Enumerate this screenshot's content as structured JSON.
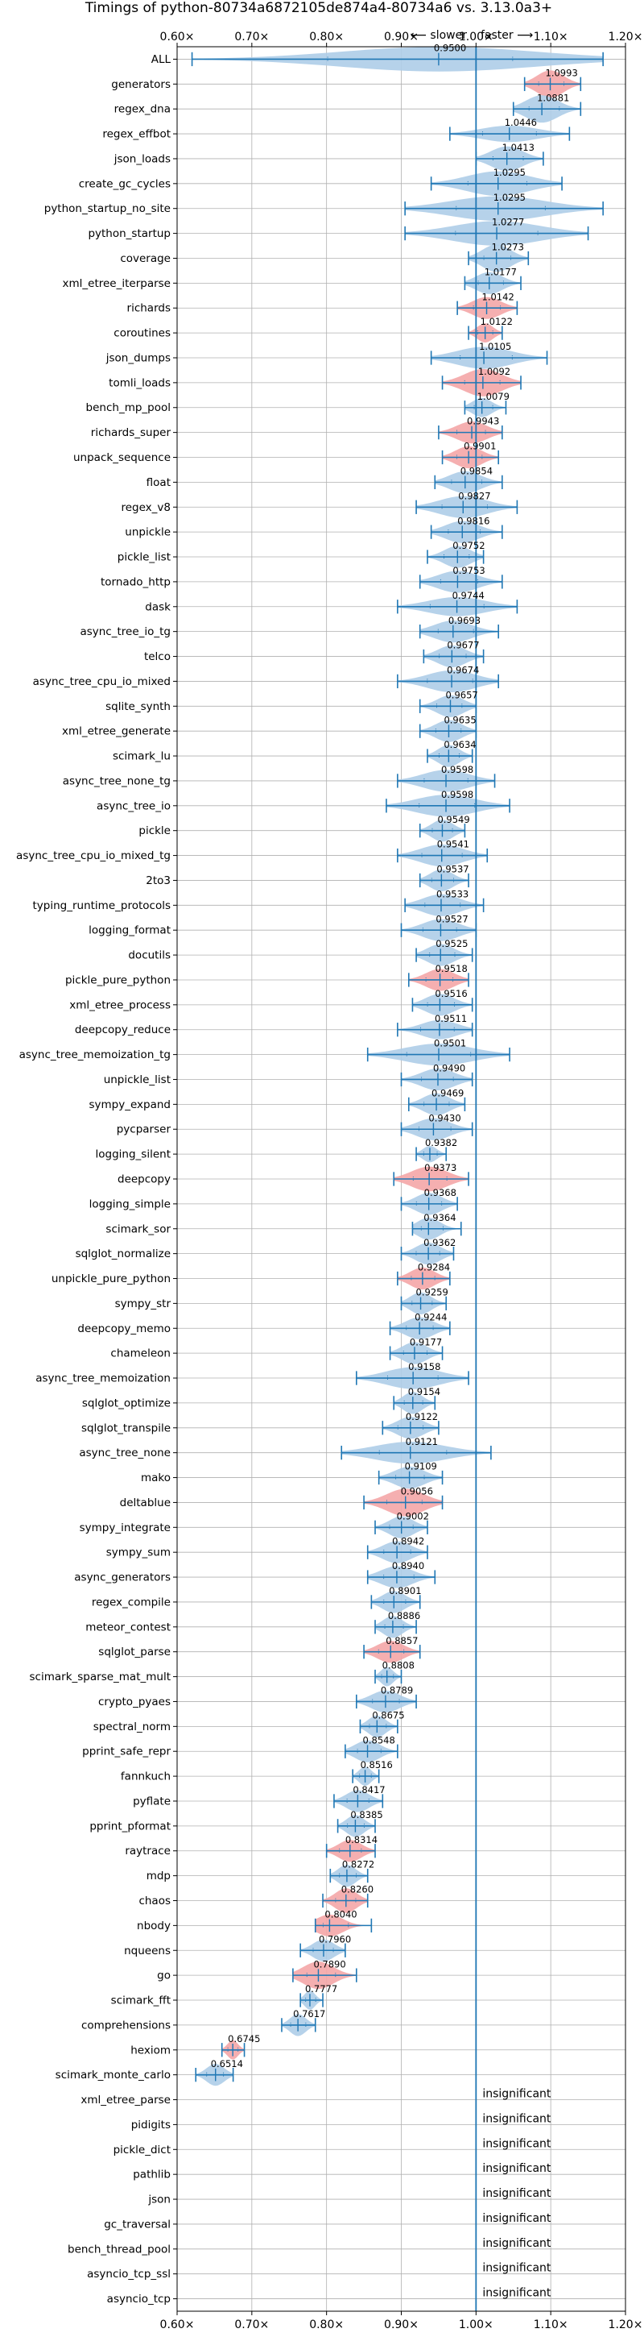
{
  "chart_data": {
    "type": "violin",
    "title": "Timings of python-80734a6872105de874a4-80734a6 vs. 3.13.0a3+",
    "subtitle_slower": "⟵ slower",
    "subtitle_faster": "faster ⟶",
    "xlim": [
      0.6,
      1.2
    ],
    "xticks": [
      "0.60×",
      "0.70×",
      "0.80×",
      "0.90×",
      "1.00×",
      "1.10×",
      "1.20×"
    ],
    "reference_line": 1.0,
    "grid": true,
    "colors": {
      "normal": "#1f77b4",
      "violin_normal": "#aecde8",
      "violin_highlight": "#f4a6a7"
    },
    "insignificant_label": "insignificant",
    "benchmarks": [
      {
        "name": "ALL",
        "value": 0.95,
        "min": 0.62,
        "max": 1.17,
        "width": 0.9,
        "highlight": false
      },
      {
        "name": "generators",
        "value": 1.0993,
        "min": 1.065,
        "max": 1.14,
        "width": 1.0,
        "highlight": true
      },
      {
        "name": "regex_dna",
        "value": 1.0881,
        "min": 1.05,
        "max": 1.14,
        "width": 1.0,
        "highlight": false
      },
      {
        "name": "regex_effbot",
        "value": 1.0446,
        "min": 0.965,
        "max": 1.125,
        "width": 0.6,
        "highlight": false
      },
      {
        "name": "json_loads",
        "value": 1.0413,
        "min": 1.0,
        "max": 1.09,
        "width": 0.9,
        "highlight": false
      },
      {
        "name": "create_gc_cycles",
        "value": 1.0295,
        "min": 0.94,
        "max": 1.115,
        "width": 0.9,
        "highlight": false
      },
      {
        "name": "python_startup_no_site",
        "value": 1.0295,
        "min": 0.905,
        "max": 1.17,
        "width": 0.9,
        "highlight": false
      },
      {
        "name": "python_startup",
        "value": 1.0277,
        "min": 0.905,
        "max": 1.15,
        "width": 0.9,
        "highlight": false
      },
      {
        "name": "coverage",
        "value": 1.0273,
        "min": 0.99,
        "max": 1.07,
        "width": 1.0,
        "highlight": false
      },
      {
        "name": "xml_etree_iterparse",
        "value": 1.0177,
        "min": 0.985,
        "max": 1.06,
        "width": 0.8,
        "highlight": false
      },
      {
        "name": "richards",
        "value": 1.0142,
        "min": 0.975,
        "max": 1.055,
        "width": 0.8,
        "highlight": true
      },
      {
        "name": "coroutines",
        "value": 1.0122,
        "min": 0.99,
        "max": 1.035,
        "width": 0.7,
        "highlight": true
      },
      {
        "name": "json_dumps",
        "value": 1.0105,
        "min": 0.94,
        "max": 1.095,
        "width": 0.8,
        "highlight": false
      },
      {
        "name": "tomli_loads",
        "value": 1.0092,
        "min": 0.955,
        "max": 1.06,
        "width": 1.0,
        "highlight": true
      },
      {
        "name": "bench_mp_pool",
        "value": 1.0079,
        "min": 0.985,
        "max": 1.04,
        "width": 0.7,
        "highlight": false
      },
      {
        "name": "richards_super",
        "value": 0.9943,
        "min": 0.95,
        "max": 1.035,
        "width": 0.8,
        "highlight": true
      },
      {
        "name": "unpack_sequence",
        "value": 0.9901,
        "min": 0.955,
        "max": 1.03,
        "width": 0.8,
        "highlight": true
      },
      {
        "name": "float",
        "value": 0.9854,
        "min": 0.945,
        "max": 1.035,
        "width": 0.8,
        "highlight": false
      },
      {
        "name": "regex_v8",
        "value": 0.9827,
        "min": 0.92,
        "max": 1.055,
        "width": 0.8,
        "highlight": false
      },
      {
        "name": "unpickle",
        "value": 0.9816,
        "min": 0.94,
        "max": 1.035,
        "width": 0.8,
        "highlight": false
      },
      {
        "name": "pickle_list",
        "value": 0.9752,
        "min": 0.935,
        "max": 1.01,
        "width": 0.8,
        "highlight": false
      },
      {
        "name": "tornado_http",
        "value": 0.9753,
        "min": 0.925,
        "max": 1.035,
        "width": 0.8,
        "highlight": false
      },
      {
        "name": "dask",
        "value": 0.9744,
        "min": 0.895,
        "max": 1.055,
        "width": 0.7,
        "highlight": false
      },
      {
        "name": "async_tree_io_tg",
        "value": 0.9693,
        "min": 0.925,
        "max": 1.03,
        "width": 0.8,
        "highlight": false
      },
      {
        "name": "telco",
        "value": 0.9677,
        "min": 0.93,
        "max": 1.01,
        "width": 0.8,
        "highlight": false
      },
      {
        "name": "async_tree_cpu_io_mixed",
        "value": 0.9674,
        "min": 0.895,
        "max": 1.03,
        "width": 0.8,
        "highlight": false
      },
      {
        "name": "sqlite_synth",
        "value": 0.9657,
        "min": 0.925,
        "max": 1.0,
        "width": 0.8,
        "highlight": false
      },
      {
        "name": "xml_etree_generate",
        "value": 0.9635,
        "min": 0.925,
        "max": 1.0,
        "width": 0.8,
        "highlight": false
      },
      {
        "name": "scimark_lu",
        "value": 0.9634,
        "min": 0.935,
        "max": 0.995,
        "width": 0.8,
        "highlight": false
      },
      {
        "name": "async_tree_none_tg",
        "value": 0.9598,
        "min": 0.895,
        "max": 1.025,
        "width": 0.8,
        "highlight": false
      },
      {
        "name": "async_tree_io",
        "value": 0.9598,
        "min": 0.88,
        "max": 1.045,
        "width": 0.8,
        "highlight": false
      },
      {
        "name": "pickle",
        "value": 0.9549,
        "min": 0.925,
        "max": 0.985,
        "width": 0.8,
        "highlight": false
      },
      {
        "name": "async_tree_cpu_io_mixed_tg",
        "value": 0.9541,
        "min": 0.895,
        "max": 1.015,
        "width": 0.8,
        "highlight": false
      },
      {
        "name": "2to3",
        "value": 0.9537,
        "min": 0.925,
        "max": 0.99,
        "width": 0.8,
        "highlight": false
      },
      {
        "name": "typing_runtime_protocols",
        "value": 0.9533,
        "min": 0.905,
        "max": 1.01,
        "width": 0.8,
        "highlight": false
      },
      {
        "name": "logging_format",
        "value": 0.9527,
        "min": 0.9,
        "max": 1.0,
        "width": 0.8,
        "highlight": false
      },
      {
        "name": "docutils",
        "value": 0.9525,
        "min": 0.92,
        "max": 0.995,
        "width": 0.8,
        "highlight": false
      },
      {
        "name": "pickle_pure_python",
        "value": 0.9518,
        "min": 0.91,
        "max": 0.99,
        "width": 0.8,
        "highlight": true
      },
      {
        "name": "xml_etree_process",
        "value": 0.9516,
        "min": 0.915,
        "max": 0.995,
        "width": 0.8,
        "highlight": false
      },
      {
        "name": "deepcopy_reduce",
        "value": 0.9511,
        "min": 0.895,
        "max": 0.995,
        "width": 0.7,
        "highlight": false
      },
      {
        "name": "async_tree_memoization_tg",
        "value": 0.9501,
        "min": 0.855,
        "max": 1.045,
        "width": 0.8,
        "highlight": false
      },
      {
        "name": "unpickle_list",
        "value": 0.949,
        "min": 0.9,
        "max": 0.995,
        "width": 0.8,
        "highlight": false
      },
      {
        "name": "sympy_expand",
        "value": 0.9469,
        "min": 0.91,
        "max": 0.985,
        "width": 0.8,
        "highlight": false
      },
      {
        "name": "pycparser",
        "value": 0.943,
        "min": 0.9,
        "max": 0.995,
        "width": 0.8,
        "highlight": false
      },
      {
        "name": "logging_silent",
        "value": 0.9382,
        "min": 0.92,
        "max": 0.96,
        "width": 0.6,
        "highlight": false
      },
      {
        "name": "deepcopy",
        "value": 0.9373,
        "min": 0.89,
        "max": 0.99,
        "width": 0.9,
        "highlight": true
      },
      {
        "name": "logging_simple",
        "value": 0.9368,
        "min": 0.9,
        "max": 0.975,
        "width": 0.8,
        "highlight": false
      },
      {
        "name": "scimark_sor",
        "value": 0.9364,
        "min": 0.915,
        "max": 0.98,
        "width": 0.8,
        "highlight": false
      },
      {
        "name": "sqlglot_normalize",
        "value": 0.9362,
        "min": 0.9,
        "max": 0.97,
        "width": 0.8,
        "highlight": false
      },
      {
        "name": "unpickle_pure_python",
        "value": 0.9284,
        "min": 0.895,
        "max": 0.965,
        "width": 0.8,
        "highlight": true
      },
      {
        "name": "sympy_str",
        "value": 0.9259,
        "min": 0.9,
        "max": 0.96,
        "width": 0.8,
        "highlight": false
      },
      {
        "name": "deepcopy_memo",
        "value": 0.9244,
        "min": 0.885,
        "max": 0.965,
        "width": 0.8,
        "highlight": false
      },
      {
        "name": "chameleon",
        "value": 0.9177,
        "min": 0.885,
        "max": 0.955,
        "width": 0.8,
        "highlight": false
      },
      {
        "name": "async_tree_memoization",
        "value": 0.9158,
        "min": 0.84,
        "max": 0.99,
        "width": 0.8,
        "highlight": false
      },
      {
        "name": "sqlglot_optimize",
        "value": 0.9154,
        "min": 0.89,
        "max": 0.945,
        "width": 0.8,
        "highlight": false
      },
      {
        "name": "sqlglot_transpile",
        "value": 0.9122,
        "min": 0.875,
        "max": 0.95,
        "width": 0.8,
        "highlight": false
      },
      {
        "name": "async_tree_none",
        "value": 0.9121,
        "min": 0.82,
        "max": 1.02,
        "width": 0.8,
        "highlight": false
      },
      {
        "name": "mako",
        "value": 0.9109,
        "min": 0.87,
        "max": 0.955,
        "width": 0.8,
        "highlight": false
      },
      {
        "name": "deltablue",
        "value": 0.9056,
        "min": 0.85,
        "max": 0.955,
        "width": 1.0,
        "highlight": true
      },
      {
        "name": "sympy_integrate",
        "value": 0.9002,
        "min": 0.865,
        "max": 0.935,
        "width": 0.8,
        "highlight": false
      },
      {
        "name": "sympy_sum",
        "value": 0.8942,
        "min": 0.855,
        "max": 0.935,
        "width": 0.8,
        "highlight": false
      },
      {
        "name": "async_generators",
        "value": 0.894,
        "min": 0.855,
        "max": 0.945,
        "width": 0.8,
        "highlight": false
      },
      {
        "name": "regex_compile",
        "value": 0.8901,
        "min": 0.86,
        "max": 0.925,
        "width": 0.8,
        "highlight": false
      },
      {
        "name": "meteor_contest",
        "value": 0.8886,
        "min": 0.865,
        "max": 0.92,
        "width": 0.8,
        "highlight": false
      },
      {
        "name": "sqlglot_parse",
        "value": 0.8857,
        "min": 0.85,
        "max": 0.925,
        "width": 0.8,
        "highlight": true
      },
      {
        "name": "scimark_sparse_mat_mult",
        "value": 0.8808,
        "min": 0.865,
        "max": 0.9,
        "width": 0.7,
        "highlight": false
      },
      {
        "name": "crypto_pyaes",
        "value": 0.8789,
        "min": 0.84,
        "max": 0.92,
        "width": 0.8,
        "highlight": false
      },
      {
        "name": "spectral_norm",
        "value": 0.8675,
        "min": 0.845,
        "max": 0.895,
        "width": 0.8,
        "highlight": false
      },
      {
        "name": "pprint_safe_repr",
        "value": 0.8548,
        "min": 0.825,
        "max": 0.895,
        "width": 0.8,
        "highlight": false
      },
      {
        "name": "fannkuch",
        "value": 0.8516,
        "min": 0.835,
        "max": 0.87,
        "width": 0.7,
        "highlight": false
      },
      {
        "name": "pyflate",
        "value": 0.8417,
        "min": 0.81,
        "max": 0.875,
        "width": 0.8,
        "highlight": false
      },
      {
        "name": "pprint_pformat",
        "value": 0.8385,
        "min": 0.815,
        "max": 0.865,
        "width": 0.8,
        "highlight": false
      },
      {
        "name": "raytrace",
        "value": 0.8314,
        "min": 0.8,
        "max": 0.865,
        "width": 0.8,
        "highlight": true
      },
      {
        "name": "mdp",
        "value": 0.8272,
        "min": 0.805,
        "max": 0.855,
        "width": 0.8,
        "highlight": false
      },
      {
        "name": "chaos",
        "value": 0.826,
        "min": 0.795,
        "max": 0.855,
        "width": 0.9,
        "highlight": true
      },
      {
        "name": "nbody",
        "value": 0.804,
        "min": 0.785,
        "max": 0.86,
        "width": 0.8,
        "highlight": true
      },
      {
        "name": "nqueens",
        "value": 0.796,
        "min": 0.765,
        "max": 0.825,
        "width": 0.8,
        "highlight": false
      },
      {
        "name": "go",
        "value": 0.789,
        "min": 0.755,
        "max": 0.84,
        "width": 1.0,
        "highlight": true
      },
      {
        "name": "scimark_fft",
        "value": 0.7777,
        "min": 0.765,
        "max": 0.795,
        "width": 0.7,
        "highlight": false
      },
      {
        "name": "comprehensions",
        "value": 0.7617,
        "min": 0.74,
        "max": 0.785,
        "width": 0.8,
        "highlight": false
      },
      {
        "name": "hexiom",
        "value": 0.6745,
        "min": 0.66,
        "max": 0.69,
        "width": 0.7,
        "highlight": true
      },
      {
        "name": "scimark_monte_carlo",
        "value": 0.6514,
        "min": 0.625,
        "max": 0.675,
        "width": 0.8,
        "highlight": false
      },
      {
        "name": "xml_etree_parse",
        "insignificant": true
      },
      {
        "name": "pidigits",
        "insignificant": true
      },
      {
        "name": "pickle_dict",
        "insignificant": true
      },
      {
        "name": "pathlib",
        "insignificant": true
      },
      {
        "name": "json",
        "insignificant": true
      },
      {
        "name": "gc_traversal",
        "insignificant": true
      },
      {
        "name": "bench_thread_pool",
        "insignificant": true
      },
      {
        "name": "asyncio_tcp_ssl",
        "insignificant": true
      },
      {
        "name": "asyncio_tcp",
        "insignificant": true
      }
    ]
  }
}
